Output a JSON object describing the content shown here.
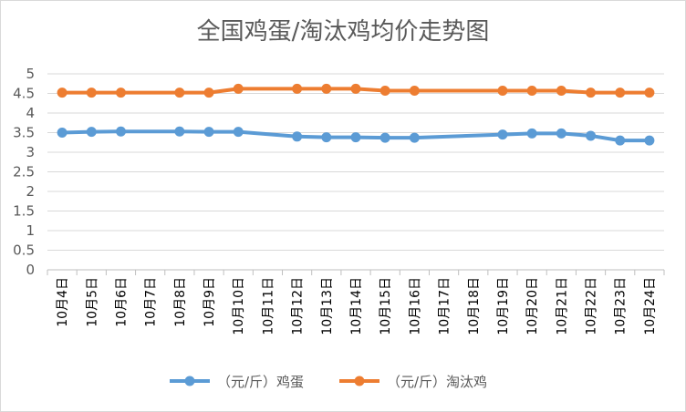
{
  "chart_data": {
    "type": "line",
    "title": "全国鸡蛋/淘汰鸡均价走势图",
    "xlabel": "",
    "ylabel": "",
    "ylim": [
      0,
      5
    ],
    "yticks": [
      "0",
      "0.5",
      "1",
      "1.5",
      "2",
      "2.5",
      "3",
      "3.5",
      "4",
      "4.5",
      "5"
    ],
    "categories": [
      "10月4日",
      "10月5日",
      "10月6日",
      "10月7日",
      "10月8日",
      "10月9日",
      "10月10日",
      "10月11日",
      "10月12日",
      "10月13日",
      "10月14日",
      "10月15日",
      "10月16日",
      "10月17日",
      "10月18日",
      "10月19日",
      "10月20日",
      "10月21日",
      "10月22日",
      "10月23日",
      "10月24日"
    ],
    "grid": true,
    "legend_position": "bottom",
    "series": [
      {
        "name": "（元/斤）鸡蛋",
        "color": "#5b9bd5",
        "values": [
          3.5,
          3.52,
          3.53,
          null,
          3.53,
          3.52,
          3.52,
          null,
          3.4,
          3.38,
          3.38,
          3.37,
          3.37,
          null,
          null,
          3.45,
          3.48,
          3.48,
          3.42,
          3.3,
          3.3
        ]
      },
      {
        "name": "（元/斤）淘汰鸡",
        "color": "#ed7d31",
        "values": [
          4.52,
          4.52,
          4.52,
          null,
          4.52,
          4.52,
          4.62,
          null,
          4.62,
          4.62,
          4.62,
          4.57,
          4.57,
          null,
          null,
          4.57,
          4.57,
          4.57,
          4.52,
          4.52,
          4.52
        ]
      }
    ]
  }
}
